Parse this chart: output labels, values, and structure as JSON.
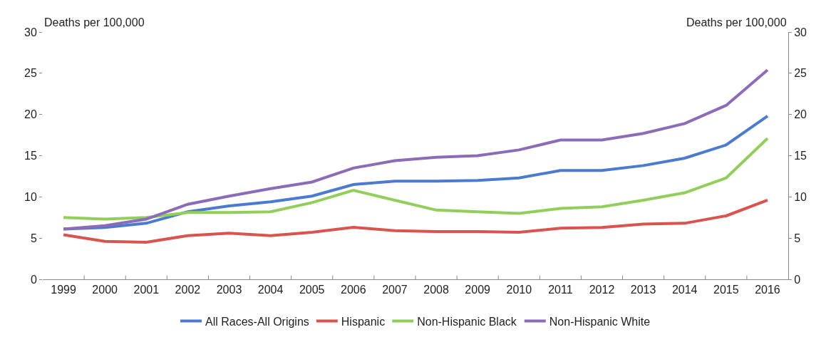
{
  "chart_data": {
    "type": "line",
    "ylabel": "Deaths per 100,000",
    "y2label": "Deaths per 100,000",
    "categories": [
      "1999",
      "2000",
      "2001",
      "2002",
      "2003",
      "2004",
      "2005",
      "2006",
      "2007",
      "2008",
      "2009",
      "2010",
      "2011",
      "2012",
      "2013",
      "2014",
      "2015",
      "2016"
    ],
    "series": [
      {
        "name": "All Races-All Origins",
        "color": "#4a7bd0",
        "values": [
          6.1,
          6.3,
          6.8,
          8.2,
          8.9,
          9.4,
          10.1,
          11.5,
          11.9,
          11.9,
          12.0,
          12.3,
          13.2,
          13.2,
          13.8,
          14.7,
          16.3,
          19.8
        ]
      },
      {
        "name": "Hispanic",
        "color": "#d9534f",
        "values": [
          5.4,
          4.6,
          4.5,
          5.3,
          5.6,
          5.3,
          5.7,
          6.3,
          5.9,
          5.8,
          5.8,
          5.7,
          6.2,
          6.3,
          6.7,
          6.8,
          7.7,
          9.6
        ]
      },
      {
        "name": "Non-Hispanic Black",
        "color": "#92cf5a",
        "values": [
          7.5,
          7.3,
          7.5,
          8.1,
          8.1,
          8.2,
          9.3,
          10.8,
          9.6,
          8.4,
          8.2,
          8.0,
          8.6,
          8.8,
          9.6,
          10.5,
          12.3,
          17.1
        ]
      },
      {
        "name": "Non-Hispanic White",
        "color": "#8c6bb8",
        "values": [
          6.1,
          6.5,
          7.3,
          9.1,
          10.1,
          11.0,
          11.8,
          13.5,
          14.4,
          14.8,
          15.0,
          15.7,
          16.9,
          16.9,
          17.7,
          18.9,
          21.1,
          25.4
        ]
      }
    ],
    "ylim": [
      0,
      30
    ],
    "yticks": [
      0,
      5,
      10,
      15,
      20,
      25,
      30
    ],
    "y2lim": [
      0,
      30
    ],
    "y2ticks": [
      0,
      5,
      10,
      15,
      20,
      25,
      30
    ],
    "legend": "bottom",
    "marker": "none",
    "line_style": "solid"
  }
}
